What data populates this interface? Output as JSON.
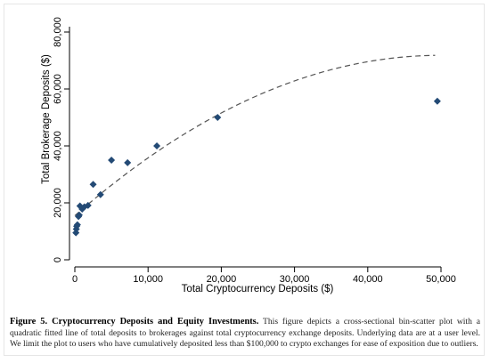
{
  "chart_data": {
    "type": "scatter",
    "xlabel": "Total Cryptocurrency Deposits ($)",
    "ylabel": "Total Brokerage Deposits ($)",
    "xlim": [
      0,
      50000
    ],
    "ylim": [
      0,
      80000
    ],
    "xticks": [
      0,
      10000,
      20000,
      30000,
      40000,
      50000
    ],
    "yticks": [
      0,
      20000,
      40000,
      60000,
      80000
    ],
    "xtick_labels": [
      "0",
      "10,000",
      "20,000",
      "30,000",
      "40,000",
      "50,000"
    ],
    "ytick_labels": [
      "0",
      "20,000",
      "40,000",
      "60,000",
      "80,000"
    ],
    "series": [
      {
        "kind": "points",
        "marker": "diamond",
        "color": "#234a75",
        "points": [
          {
            "x": 150,
            "y": 9500
          },
          {
            "x": 200,
            "y": 10800
          },
          {
            "x": 250,
            "y": 11800
          },
          {
            "x": 350,
            "y": 12300
          },
          {
            "x": 500,
            "y": 15200
          },
          {
            "x": 600,
            "y": 15700
          },
          {
            "x": 700,
            "y": 18900
          },
          {
            "x": 1000,
            "y": 17800
          },
          {
            "x": 1300,
            "y": 18600
          },
          {
            "x": 1800,
            "y": 19100
          },
          {
            "x": 2500,
            "y": 26500
          },
          {
            "x": 3500,
            "y": 22900
          },
          {
            "x": 5000,
            "y": 35000
          },
          {
            "x": 7200,
            "y": 34100
          },
          {
            "x": 11200,
            "y": 40000
          },
          {
            "x": 19500,
            "y": 50000
          },
          {
            "x": 49500,
            "y": 55700
          }
        ]
      },
      {
        "kind": "fitted-line",
        "style": "dashed",
        "color": "#555555",
        "fit": "quadratic",
        "x_range": [
          0,
          49200
        ],
        "coefficients": {
          "a": -2.257e-05,
          "b": 2.2548,
          "c": 15500
        }
      }
    ],
    "grid": false,
    "legend": "none"
  },
  "caption": {
    "title": "Figure 5. Cryptocurrency Deposits and Equity Investments.",
    "text": "This figure depicts a cross-sectional bin-scatter plot with a quadratic fitted line of total deposits to brokerages against total cryptocurrency exchange deposits. Underlying data are at a user level. We limit the plot to users who have cumulatively deposited less than $100,000 to crypto exchanges for ease of exposition due to outliers."
  }
}
